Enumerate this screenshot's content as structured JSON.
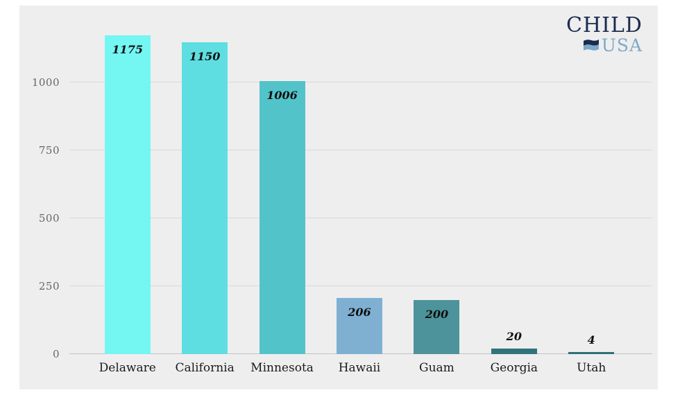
{
  "logo": {
    "line1": "CHILD",
    "line2": "USA",
    "color_primary": "#1b2b4e",
    "color_secondary": "#7ca9c9"
  },
  "chart_data": {
    "type": "bar",
    "title": "",
    "categories": [
      "Delaware",
      "California",
      "Minnesota",
      "Hawaii",
      "Guam",
      "Georgia",
      "Utah"
    ],
    "values": [
      1175,
      1150,
      1006,
      206,
      200,
      20,
      4
    ],
    "value_labels": [
      "1175",
      "1150",
      "1006",
      "206",
      "200",
      "20",
      "4"
    ],
    "bar_colors": [
      "#74f6f3",
      "#5fdee1",
      "#53c3ca",
      "#7fb0d2",
      "#4d939b",
      "#31737b",
      "#2f6f77"
    ],
    "yticks": [
      0,
      250,
      500,
      750,
      1000
    ],
    "ytick_labels": [
      "0",
      "250",
      "500",
      "750",
      "1000"
    ],
    "ylim": [
      0,
      1200
    ],
    "grid": true,
    "legend": "none",
    "plot_background": "#eeeeee",
    "page_background": "#ffffff",
    "value_label_style": "bold-italic",
    "axis_text_color": "#666666",
    "category_text_color": "#1a1a1a"
  }
}
